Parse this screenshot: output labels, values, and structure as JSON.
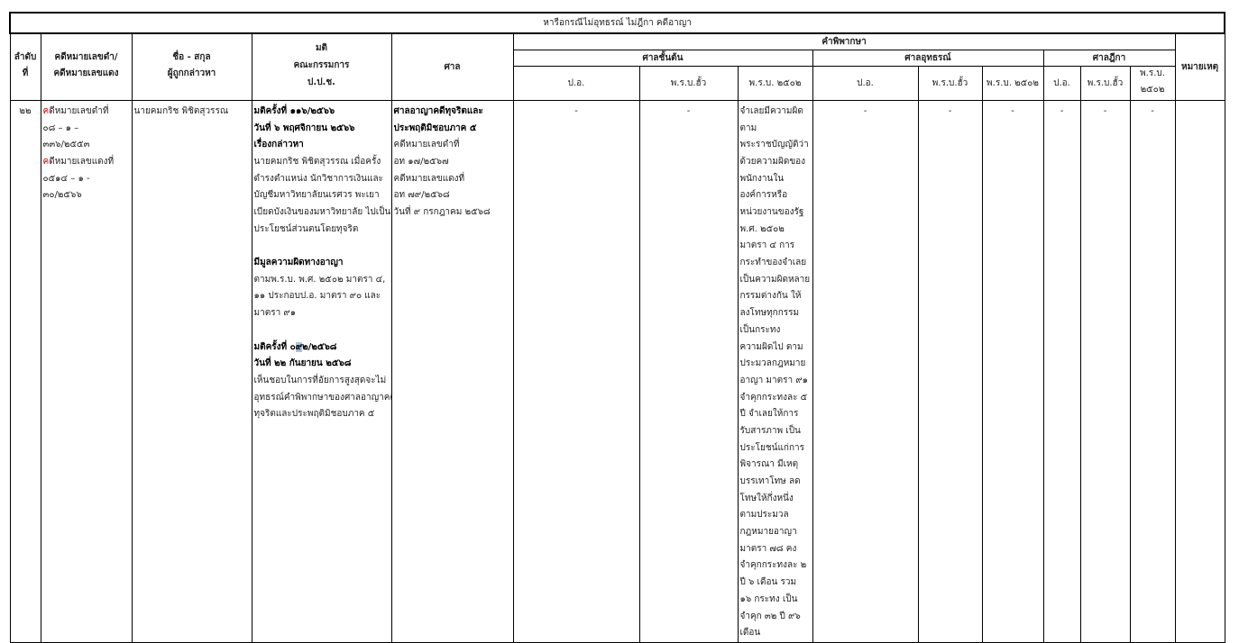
{
  "title": "หารือกรณีไม่อุทธรณ์ ไม่ฎีกา คดีอาญา",
  "headers": {
    "no": [
      "ลำดับ",
      "ที่"
    ],
    "case": [
      "คดีหมายเลขดำ/",
      "คดีหมายเลขแดง"
    ],
    "name": [
      "ชื่อ - สกุล",
      "ผู้ถูกกล่าวหา"
    ],
    "resolution": [
      "มติ",
      "คณะกรรมการ",
      "ป.ป.ช."
    ],
    "court": "ศาล",
    "judgment": "คำพิพากษา",
    "first": "ศาลชั้นต้น",
    "appeal": "ศาลอุทธรณ์",
    "supreme": "ศาลฎีกา",
    "remark": "หมายเหตุ",
    "po": "ป.อ.",
    "prb_new": "พ.ร.บ.ฮั้ว",
    "prb_2502": "พ.ร.บ. ๒๕๐๒",
    "prb_2502_split": [
      "พ.ร.บ.",
      "๒๕๐๒"
    ]
  },
  "row": {
    "no": "๒๒",
    "case_lines": [
      "คดีหมายเลขดำที่",
      "๐๘ – ๑ –",
      "๓๓๖/๒๕๕๓",
      "คดีหมายเลขแดงที่",
      "๐๕๑๔ – ๑ -",
      "๓๐/๒๕๖๖"
    ],
    "name": "นายคมกริช  พิชิตสุวรรณ",
    "resolution": {
      "r1_no": "มติครั้งที่ ๑๑๖/๒๕๖๖",
      "r1_date": "วันที่ ๖ พฤศจิกายน ๒๕๖๖",
      "r1_subject": "เรื่องกล่าวหา",
      "r1_lines": [
        "นายคมกริช  พิชิตสุวรรณ เมื่อครั้ง",
        "ดำรงตำแหน่ง นักวิชาการเงินและ",
        "บัญชีมหาวิทยาลัยนเรศวร พะเยา",
        "เบียดบังเงินของมหาวิทยาลัย ไปเป็น",
        "ประโยชน์ส่วนตนโดยทุจริต"
      ],
      "finding_title": "มีมูลความผิดทางอาญา",
      "finding_lines": [
        "ตามพ.ร.บ. พ.ศ. ๒๕๐๒ มาตรา ๔,",
        "๑๑ ประกอบป.อ. มาตรา ๙๐ และ",
        "มาตรา ๙๑"
      ],
      "r2_no_a": "มติครั้งที่ ๐",
      "r2_no_sel": "๙",
      "r2_no_b": "๒/๒๕๖๘",
      "r2_date": "วันที่ ๒๒ กันยายน ๒๕๖๘",
      "r2_lines": [
        "เห็นชอบในการที่อัยการสูงสุดจะไม่",
        "อุทธรณ์คำพิพากษาของศาลอาญาคดี",
        "ทุจริตและประพฤติมิชอบภาค ๕"
      ]
    },
    "court": {
      "name_lines": [
        "ศาลอาญาคดีทุจริตและ",
        "ประพฤติมิชอบภาค ๕"
      ],
      "lines": [
        "คดีหมายเลขดำที่",
        "อท ๑๗/๒๕๖๗",
        "คดีหมายเลขแดงที่",
        "อท ๗๙/๒๕๖๘",
        "วันที่ ๙ กรกฎาคม ๒๕๖๘"
      ]
    },
    "dash": "-",
    "first_prb2502_lines": [
      "จำเลยมีความผิด",
      "ตาม",
      "พระราชบัญญัติว่า",
      "ด้วยความผิดของ",
      "พนักงานใน",
      "องค์การหรือ",
      "หน่วยงานของรัฐ",
      "พ.ศ. ๒๕๐๒",
      "มาตรา ๔ การ",
      "กระทำของจำเลย",
      "เป็นความผิดหลาย",
      "กรรมต่างกัน ให้",
      "ลงโทษทุกกรรม",
      "เป็นกระทง",
      "ความผิดไป ตาม",
      "ประมวลกฎหมาย",
      "อาญา มาตรา ๙๑",
      " จำคุกกระทงละ ๕",
      " ปี จำเลยให้การ",
      "รับสารภาพ เป็น",
      "ประโยชน์แก่การ",
      "พิจารณา มีเหตุ",
      "บรรเทาโทษ ลด",
      "โทษให้กึ่งหนึ่ง",
      "ตามประมวล",
      "กฎหมายอาญา",
      "มาตรา ๗๘ คง",
      "จำคุกกระทงละ ๒",
      " ปี ๖ เดือน รวม",
      "๑๖ กระทง เป็น",
      "จำคุก ๓๒ ปี ๙๖",
      "เดือน"
    ],
    "remark": ""
  }
}
